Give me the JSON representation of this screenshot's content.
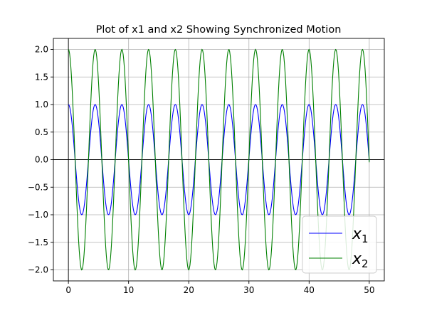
{
  "chart_data": {
    "type": "line",
    "title": "Plot of x1 and x2 Showing Synchronized Motion",
    "xlabel": "",
    "ylabel": "",
    "xlim": [
      -2.5,
      52.5
    ],
    "ylim": [
      -2.2,
      2.2
    ],
    "x_ticks": [
      0,
      10,
      20,
      30,
      40,
      50
    ],
    "x_tick_labels": [
      "0",
      "10",
      "20",
      "30",
      "40",
      "50"
    ],
    "y_ticks": [
      -2.0,
      -1.5,
      -1.0,
      -0.5,
      0.0,
      0.5,
      1.0,
      1.5,
      2.0
    ],
    "y_tick_labels": [
      "−2.0",
      "−1.5",
      "−1.0",
      "−0.5",
      "0.0",
      "0.5",
      "1.0",
      "1.5",
      "2.0"
    ],
    "grid": true,
    "zero_lines": true,
    "legend_position": "lower-right",
    "x": {
      "start": 0,
      "end": 50,
      "step": 0.1
    },
    "series": [
      {
        "name": "x_1",
        "legend_label": "x",
        "legend_subscript": "1",
        "color": "#0000ff",
        "function": "cos",
        "amplitude": 1.0,
        "angular_frequency": 1.4142,
        "phase": 0.0
      },
      {
        "name": "x_2",
        "legend_label": "x",
        "legend_subscript": "2",
        "color": "#008000",
        "function": "cos",
        "amplitude": 2.0,
        "angular_frequency": 1.4142,
        "phase": 0.0
      }
    ]
  }
}
